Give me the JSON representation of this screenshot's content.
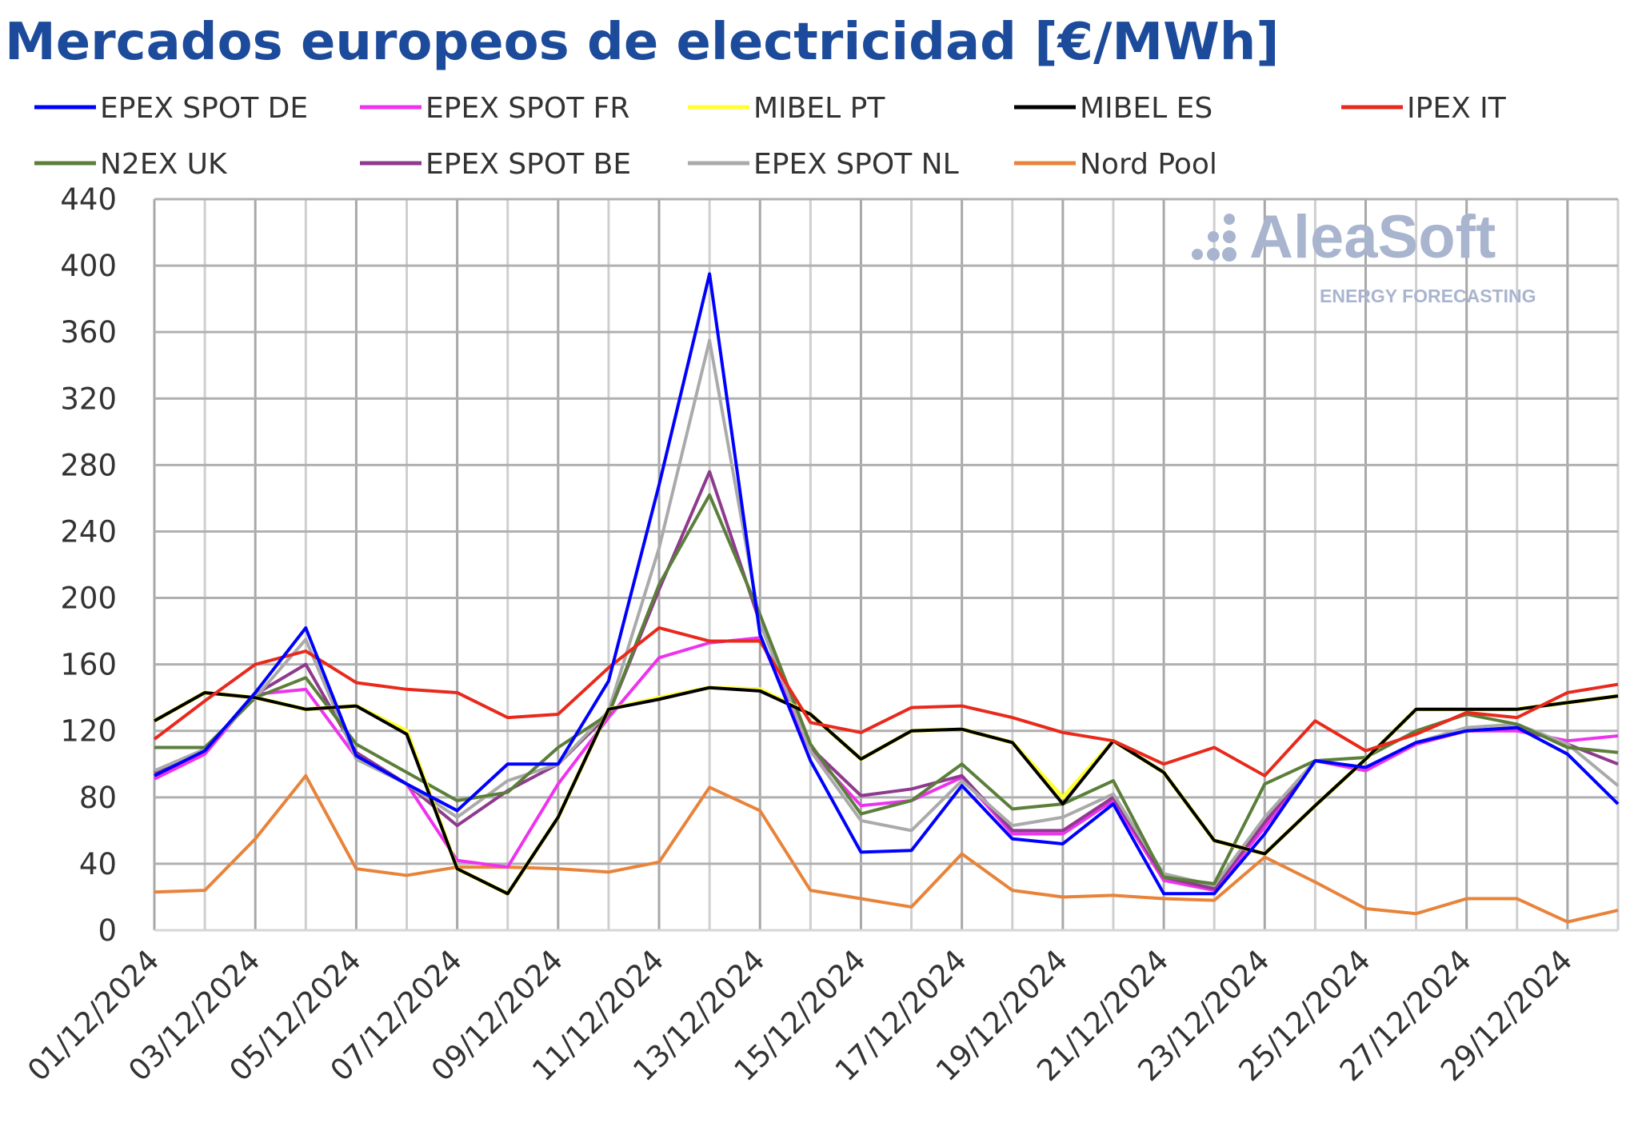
{
  "chart_data": {
    "type": "line",
    "title": "Mercados europeos de electricidad [€/MWh]",
    "xlabel": "",
    "ylabel": "",
    "ylim": [
      0,
      440
    ],
    "yticks": [
      0,
      40,
      80,
      120,
      160,
      200,
      240,
      280,
      320,
      360,
      400,
      440
    ],
    "grid": true,
    "legend_placement": "top",
    "watermark": {
      "brand": "AleaSoft",
      "tagline": "ENERGY FORECASTING"
    },
    "x": [
      "01/12/2024",
      "02/12/2024",
      "03/12/2024",
      "04/12/2024",
      "05/12/2024",
      "06/12/2024",
      "07/12/2024",
      "08/12/2024",
      "09/12/2024",
      "10/12/2024",
      "11/12/2024",
      "12/12/2024",
      "13/12/2024",
      "14/12/2024",
      "15/12/2024",
      "16/12/2024",
      "17/12/2024",
      "18/12/2024",
      "19/12/2024",
      "20/12/2024",
      "21/12/2024",
      "22/12/2024",
      "23/12/2024",
      "24/12/2024",
      "25/12/2024",
      "26/12/2024",
      "27/12/2024",
      "28/12/2024",
      "29/12/2024",
      "30/12/2024"
    ],
    "x_tick_labels": [
      "01/12/2024",
      "03/12/2024",
      "05/12/2024",
      "07/12/2024",
      "09/12/2024",
      "11/12/2024",
      "13/12/2024",
      "15/12/2024",
      "17/12/2024",
      "19/12/2024",
      "21/12/2024",
      "23/12/2024",
      "25/12/2024",
      "27/12/2024",
      "29/12/2024"
    ],
    "series": [
      {
        "name": "EPEX SPOT DE",
        "color": "#0000ff",
        "values": [
          93,
          108,
          143,
          182,
          105,
          88,
          72,
          100,
          100,
          150,
          268,
          395,
          178,
          102,
          47,
          48,
          87,
          55,
          52,
          76,
          22,
          22,
          58,
          102,
          98,
          113,
          120,
          122,
          106,
          76
        ]
      },
      {
        "name": "EPEX SPOT FR",
        "color": "#ee33ee",
        "values": [
          91,
          106,
          142,
          145,
          104,
          88,
          42,
          38,
          88,
          128,
          164,
          173,
          176,
          108,
          75,
          78,
          92,
          58,
          58,
          78,
          30,
          24,
          62,
          102,
          96,
          112,
          120,
          120,
          114,
          117
        ]
      },
      {
        "name": "MIBEL PT",
        "color": "#ffff33",
        "values": [
          126,
          143,
          140,
          133,
          135,
          120,
          37,
          22,
          68,
          133,
          140,
          146,
          145,
          130,
          103,
          120,
          121,
          113,
          80,
          114,
          95,
          54,
          46,
          75,
          103,
          133,
          133,
          133,
          137,
          141
        ]
      },
      {
        "name": "MIBEL ES",
        "color": "#000000",
        "values": [
          126,
          143,
          140,
          133,
          135,
          118,
          37,
          22,
          68,
          133,
          139,
          146,
          144,
          130,
          103,
          120,
          121,
          113,
          76,
          114,
          95,
          54,
          46,
          75,
          103,
          133,
          133,
          133,
          137,
          141
        ]
      },
      {
        "name": "IPEX IT",
        "color": "#e8291c",
        "values": [
          115,
          138,
          160,
          168,
          149,
          145,
          143,
          128,
          130,
          158,
          182,
          174,
          174,
          125,
          119,
          134,
          135,
          128,
          119,
          114,
          100,
          110,
          93,
          126,
          108,
          118,
          131,
          128,
          143,
          148
        ]
      },
      {
        "name": "N2EX UK",
        "color": "#5b7f3a",
        "values": [
          110,
          110,
          140,
          152,
          112,
          95,
          78,
          83,
          110,
          130,
          208,
          262,
          190,
          112,
          70,
          78,
          100,
          73,
          76,
          90,
          32,
          28,
          88,
          102,
          104,
          120,
          130,
          124,
          110,
          107
        ]
      },
      {
        "name": "EPEX SPOT BE",
        "color": "#8e3a8e",
        "values": [
          95,
          108,
          142,
          160,
          107,
          88,
          63,
          84,
          100,
          130,
          205,
          276,
          185,
          110,
          81,
          85,
          93,
          60,
          60,
          80,
          32,
          25,
          65,
          102,
          98,
          113,
          120,
          122,
          112,
          100
        ]
      },
      {
        "name": "EPEX SPOT NL",
        "color": "#aaaaaa",
        "values": [
          96,
          109,
          140,
          175,
          103,
          88,
          68,
          90,
          100,
          132,
          230,
          355,
          185,
          108,
          66,
          60,
          90,
          63,
          68,
          82,
          34,
          27,
          68,
          102,
          98,
          113,
          122,
          124,
          112,
          87
        ]
      },
      {
        "name": "Nord Pool",
        "color": "#e8833a",
        "values": [
          23,
          24,
          55,
          93,
          37,
          33,
          38,
          38,
          37,
          35,
          41,
          86,
          72,
          24,
          19,
          14,
          46,
          24,
          20,
          21,
          19,
          18,
          44,
          29,
          13,
          10,
          19,
          19,
          5,
          12
        ]
      }
    ]
  }
}
